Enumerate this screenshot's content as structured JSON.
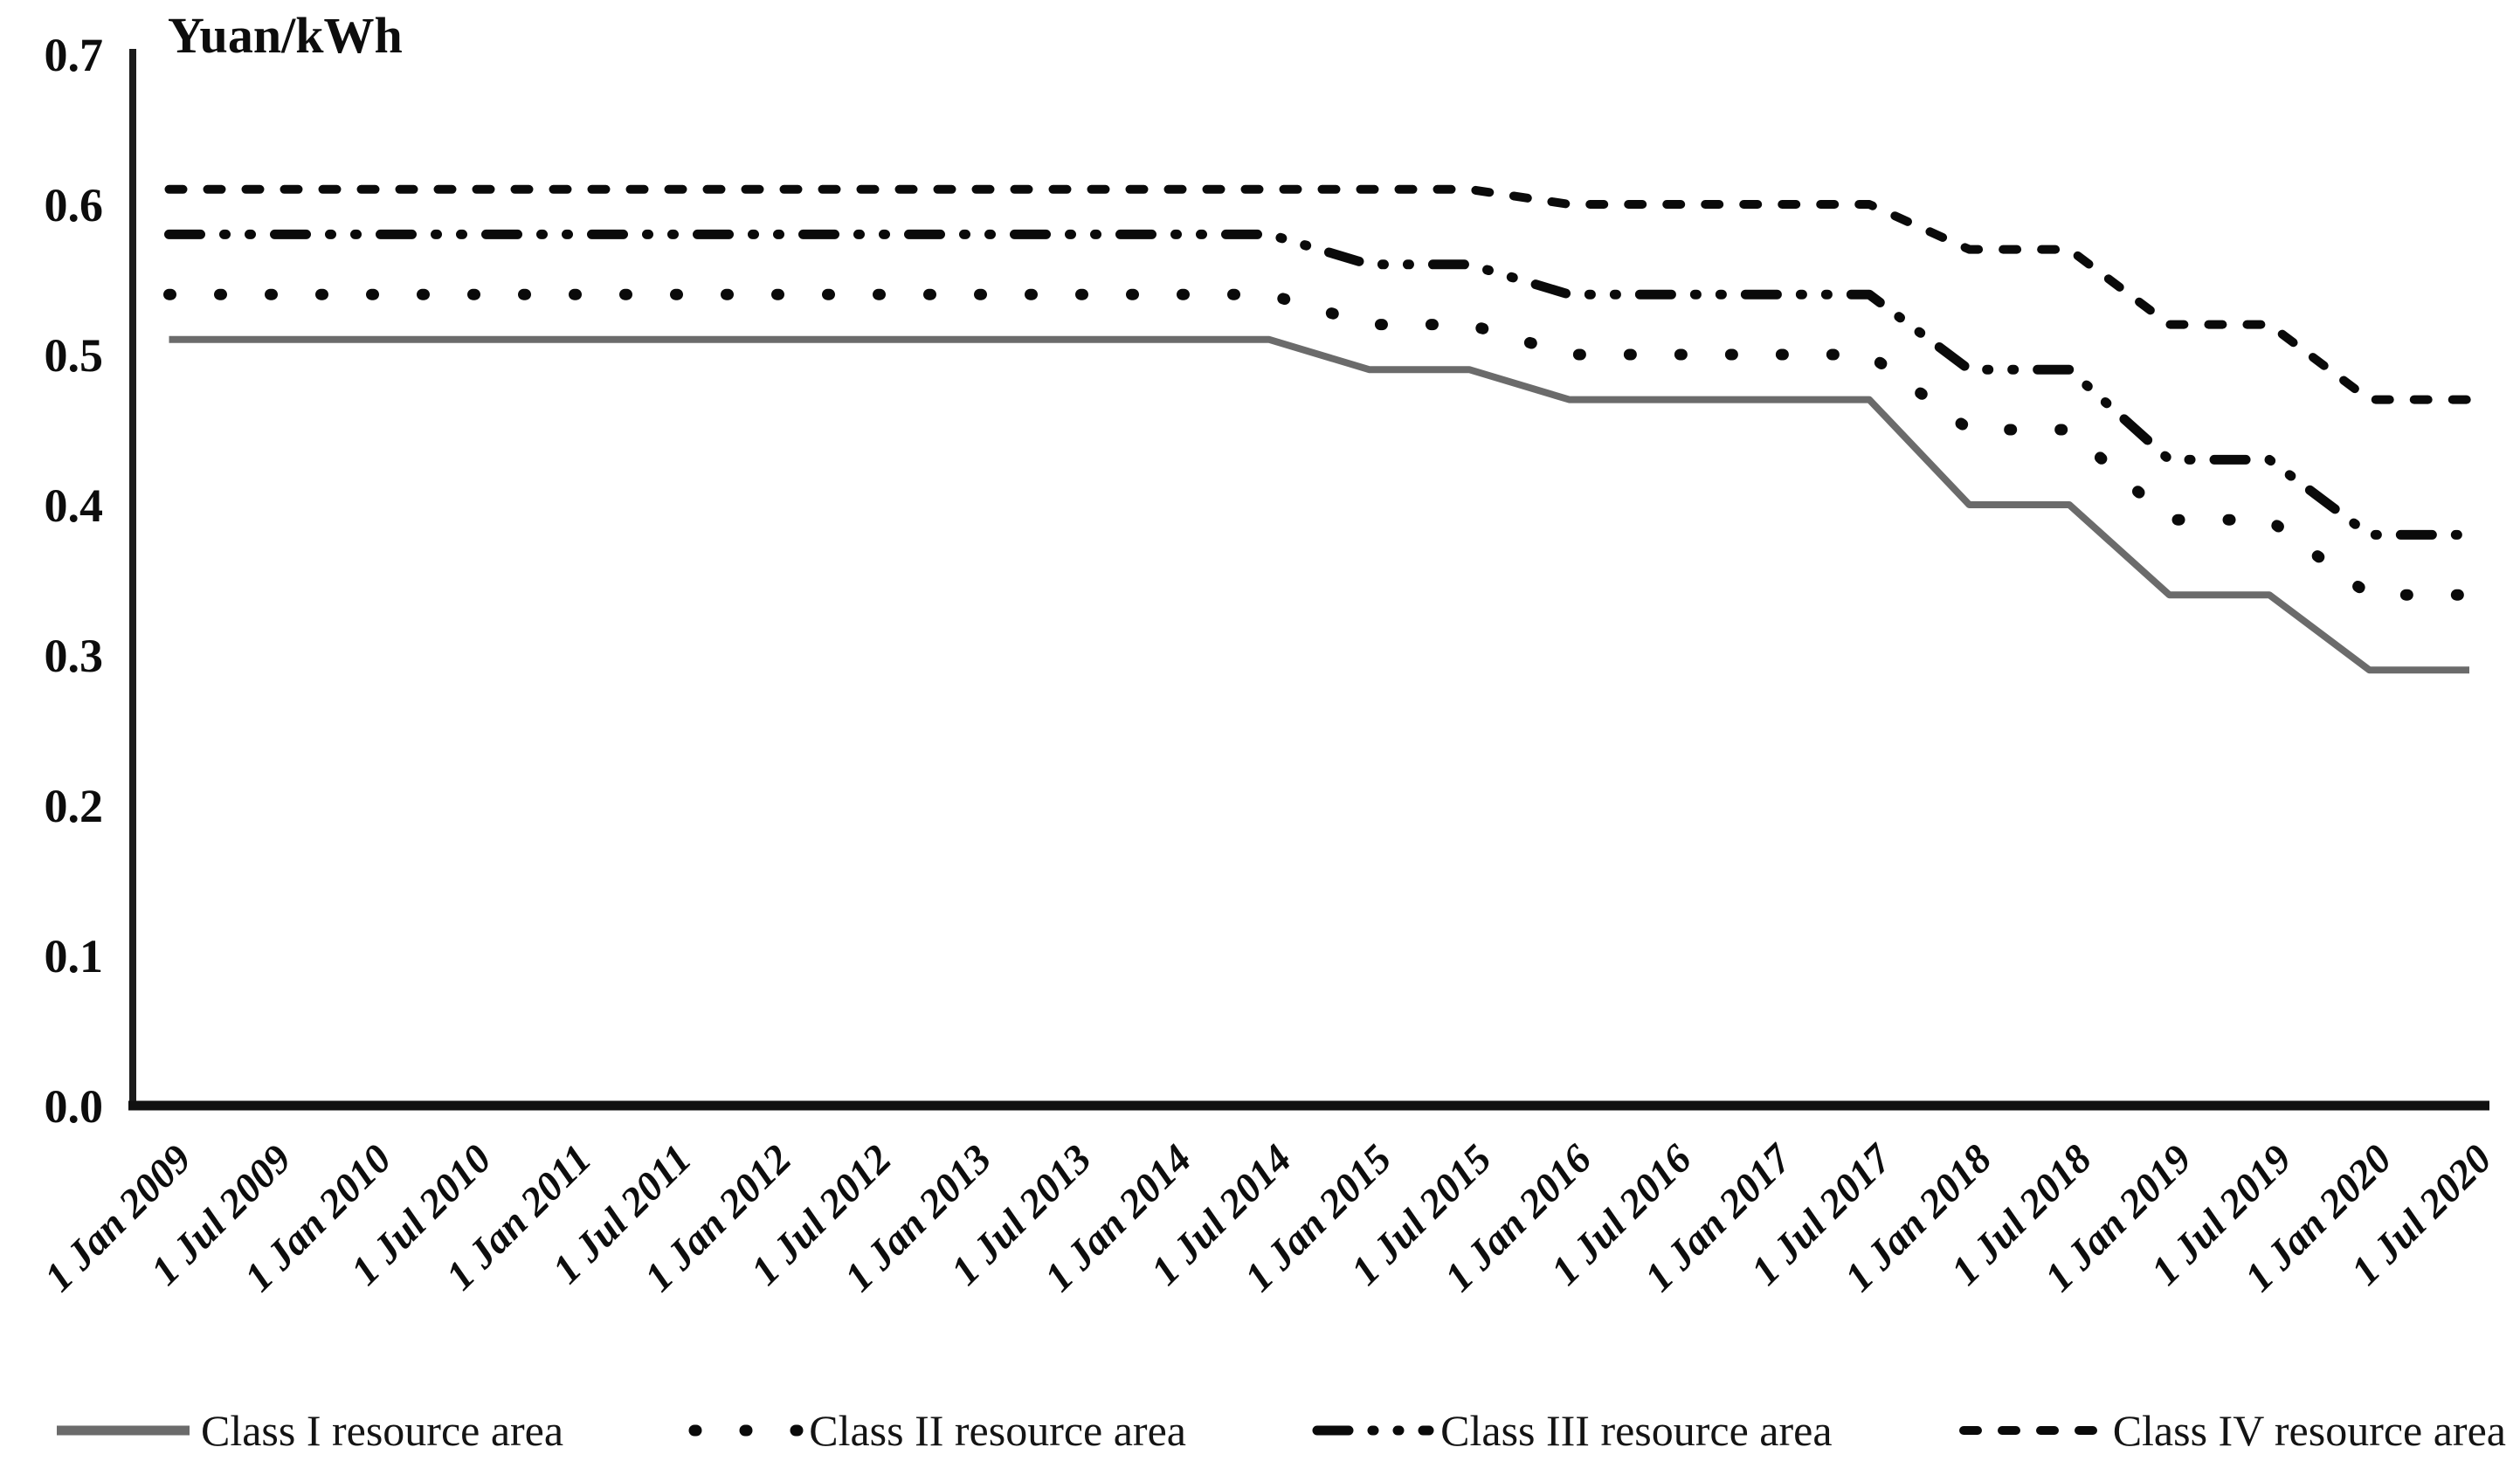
{
  "chart_data": {
    "type": "line",
    "title": "",
    "ylabel": "Yuan/kWh",
    "xlabel": "",
    "ylim": [
      0.0,
      0.7
    ],
    "y_ticks": [
      "0.0",
      "0.1",
      "0.2",
      "0.3",
      "0.4",
      "0.5",
      "0.6",
      "0.7"
    ],
    "grid": false,
    "legend_position": "bottom",
    "x": [
      "1 Jan 2009",
      "1 Jul 2009",
      "1 Jan 2010",
      "1 Jul 2010",
      "1 Jan 2011",
      "1 Jul 2011",
      "1 Jan 2012",
      "1 Jul 2012",
      "1 Jan 2013",
      "1 Jul 2013",
      "1 Jan 2014",
      "1 Jul 2014",
      "1 Jan 2015",
      "1 Jul 2015",
      "1 Jan 2016",
      "1 Jul 2016",
      "1 Jan 2017",
      "1 Jul 2017",
      "1 Jan 2018",
      "1 Jul 2018",
      "1 Jan 2019",
      "1 Jul 2019",
      "1 Jan 2020",
      "1 Jul 2020"
    ],
    "series": [
      {
        "name": "Class I resource area",
        "style": "solid",
        "color": "#6b6b6b",
        "values": [
          0.51,
          0.51,
          0.51,
          0.51,
          0.51,
          0.51,
          0.51,
          0.51,
          0.51,
          0.51,
          0.51,
          0.51,
          0.49,
          0.49,
          0.47,
          0.47,
          0.47,
          0.47,
          0.4,
          0.4,
          0.34,
          0.34,
          0.29,
          0.29
        ]
      },
      {
        "name": "Class II resource area",
        "style": "dotted",
        "color": "#0a0a0a",
        "values": [
          0.54,
          0.54,
          0.54,
          0.54,
          0.54,
          0.54,
          0.54,
          0.54,
          0.54,
          0.54,
          0.54,
          0.54,
          0.52,
          0.52,
          0.5,
          0.5,
          0.5,
          0.5,
          0.45,
          0.45,
          0.39,
          0.39,
          0.34,
          0.34
        ]
      },
      {
        "name": "Class III resource area",
        "style": "dash-dot-dot",
        "color": "#0a0a0a",
        "values": [
          0.58,
          0.58,
          0.58,
          0.58,
          0.58,
          0.58,
          0.58,
          0.58,
          0.58,
          0.58,
          0.58,
          0.58,
          0.56,
          0.56,
          0.54,
          0.54,
          0.54,
          0.54,
          0.49,
          0.49,
          0.43,
          0.43,
          0.38,
          0.38
        ]
      },
      {
        "name": "Class IV resource area",
        "style": "dashed",
        "color": "#0a0a0a",
        "values": [
          0.61,
          0.61,
          0.61,
          0.61,
          0.61,
          0.61,
          0.61,
          0.61,
          0.61,
          0.61,
          0.61,
          0.61,
          0.61,
          0.61,
          0.6,
          0.6,
          0.6,
          0.6,
          0.57,
          0.57,
          0.52,
          0.52,
          0.47,
          0.47
        ]
      }
    ]
  }
}
